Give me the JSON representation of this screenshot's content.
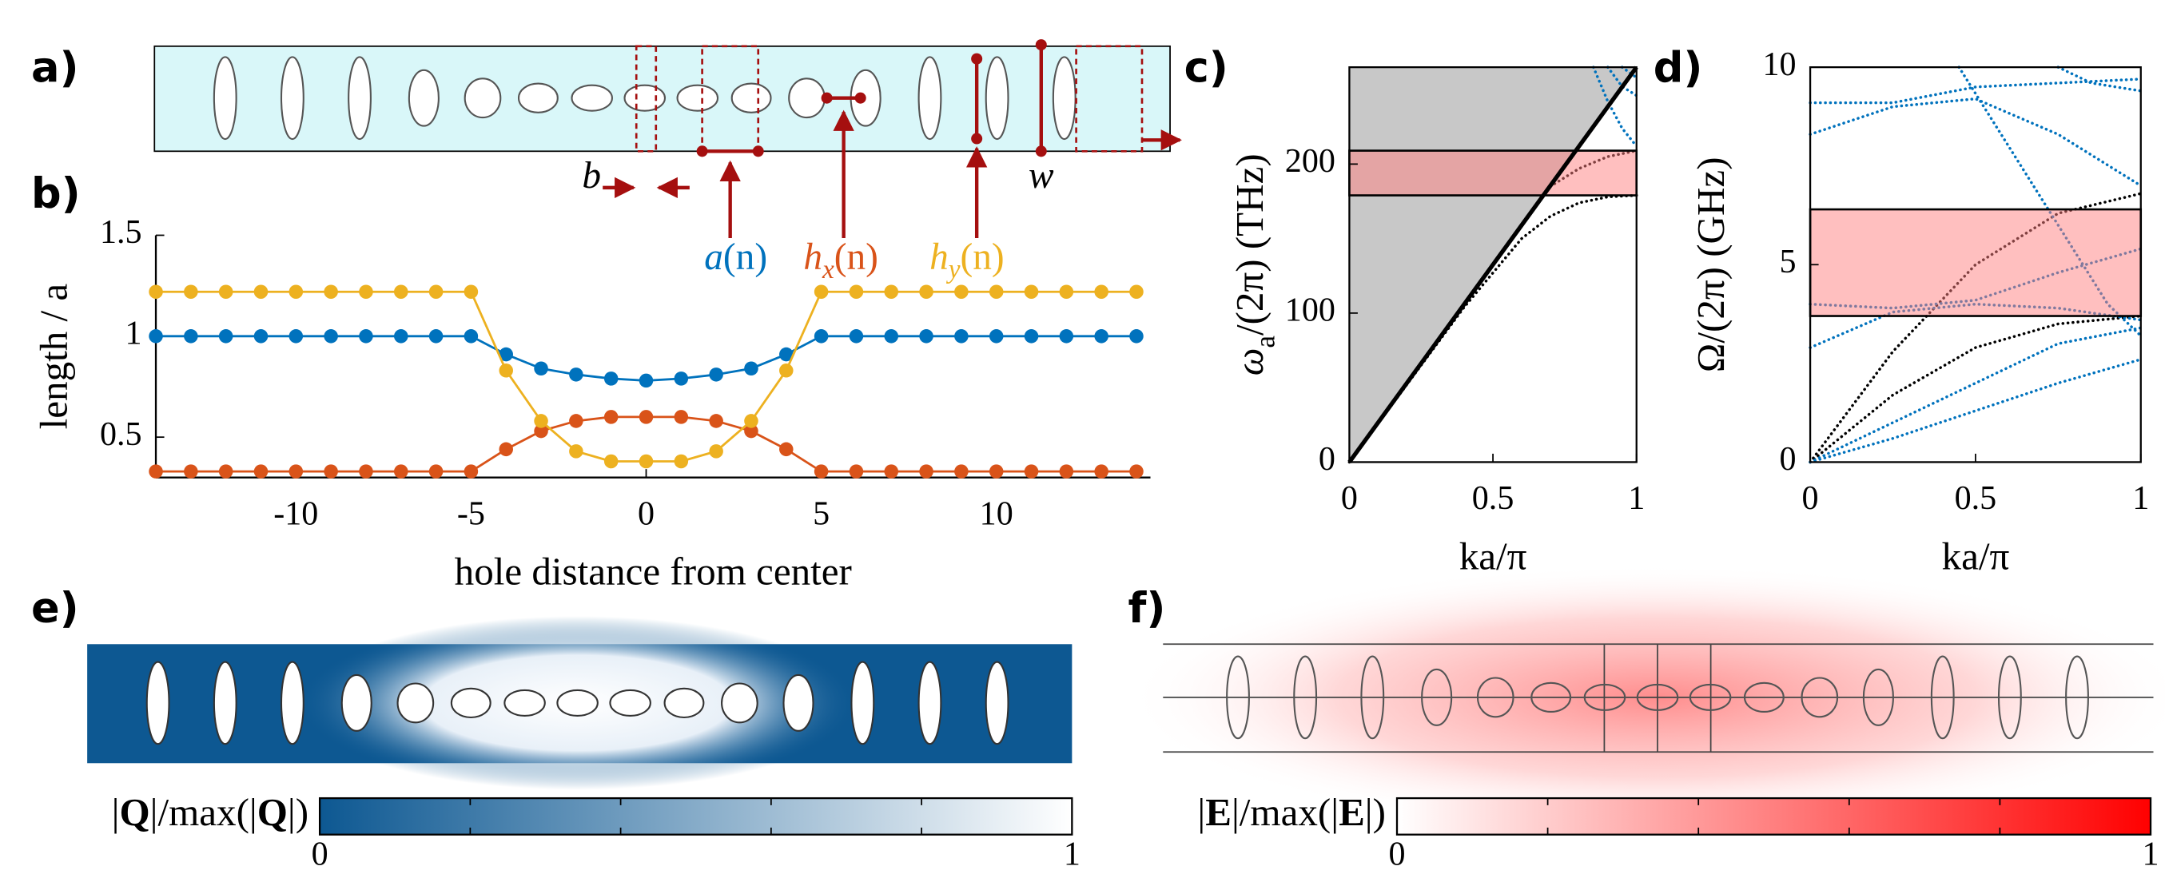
{
  "schematic": {
    "panel": "a)",
    "gap_label": "b",
    "width_label": "w"
  },
  "chart_data": [
    {
      "type": "line",
      "panel": "b)",
      "xlabel": "hole distance from center",
      "ylabel": "length / a",
      "x": [
        -14,
        -13,
        -12,
        -11,
        -10,
        -9,
        -8,
        -7,
        -6,
        -5,
        -4,
        -3,
        -2,
        -1,
        0,
        1,
        2,
        3,
        4,
        5,
        6,
        7,
        8,
        9,
        10,
        11,
        12,
        13,
        14
      ],
      "xlim": [
        -14,
        14.4
      ],
      "ylim": [
        0.3,
        1.5
      ],
      "xticks": [
        -10,
        -5,
        0,
        5,
        10
      ],
      "yticks": [
        0.5,
        1,
        1.5
      ],
      "series": [
        {
          "name": "a",
          "name_arg": "(n)",
          "color": "#0072BD",
          "values": [
            1,
            1,
            1,
            1,
            1,
            1,
            1,
            1,
            1,
            1,
            0.91,
            0.84,
            0.81,
            0.79,
            0.78,
            0.79,
            0.81,
            0.84,
            0.91,
            1,
            1,
            1,
            1,
            1,
            1,
            1,
            1,
            1,
            1
          ]
        },
        {
          "name": "h",
          "name_sub": "x",
          "name_arg": "(n)",
          "color": "#D95319",
          "values": [
            0.33,
            0.33,
            0.33,
            0.33,
            0.33,
            0.33,
            0.33,
            0.33,
            0.33,
            0.33,
            0.44,
            0.53,
            0.58,
            0.6,
            0.6,
            0.6,
            0.58,
            0.53,
            0.44,
            0.33,
            0.33,
            0.33,
            0.33,
            0.33,
            0.33,
            0.33,
            0.33,
            0.33,
            0.33
          ]
        },
        {
          "name": "h",
          "name_sub": "y",
          "name_arg": "(n)",
          "color": "#EDB120",
          "values": [
            1.22,
            1.22,
            1.22,
            1.22,
            1.22,
            1.22,
            1.22,
            1.22,
            1.22,
            1.22,
            0.83,
            0.58,
            0.43,
            0.38,
            0.38,
            0.38,
            0.43,
            0.58,
            0.83,
            1.22,
            1.22,
            1.22,
            1.22,
            1.22,
            1.22,
            1.22,
            1.22,
            1.22,
            1.22
          ]
        }
      ]
    },
    {
      "type": "band",
      "panel": "c)",
      "xlabel": "ka/π",
      "ylabel": "ω",
      "ylabel_sub": "a",
      "ylabel_rest": "/(2π) (THz)",
      "xlim": [
        0,
        1
      ],
      "ylim": [
        0,
        265
      ],
      "xticks": [
        0,
        0.5,
        1
      ],
      "yticks": [
        0,
        100,
        200
      ],
      "light_line": {
        "x": [
          0,
          1
        ],
        "values": [
          0,
          265
        ]
      },
      "cone_color": "#c8c8c8",
      "gap": [
        179,
        209
      ],
      "gap_color": "#ff8080",
      "series": [
        {
          "color": "#000000",
          "x": [
            0,
            0.2,
            0.4,
            0.6,
            0.7,
            0.8,
            0.9,
            1
          ],
          "values": [
            0,
            52,
            104,
            150,
            165,
            174,
            178,
            179
          ]
        },
        {
          "color": "#000000",
          "x": [
            0.7,
            0.8,
            0.9,
            1
          ],
          "values": [
            185,
            197,
            205,
            209
          ]
        },
        {
          "color": "#0072BD",
          "x": [
            0.85,
            0.9,
            0.95,
            1
          ],
          "values": [
            265,
            242,
            224,
            212
          ]
        },
        {
          "color": "#0072BD",
          "x": [
            0.9,
            0.95,
            1
          ],
          "values": [
            265,
            252,
            246
          ]
        },
        {
          "color": "#0072BD",
          "x": [
            0.95,
            1
          ],
          "values": [
            265,
            258
          ]
        }
      ]
    },
    {
      "type": "band",
      "panel": "d)",
      "xlabel": "ka/π",
      "ylabel": "Ω/(2π) (GHz)",
      "xlim": [
        0,
        1
      ],
      "ylim": [
        0,
        10
      ],
      "xticks": [
        0,
        0.5,
        1
      ],
      "yticks": [
        0,
        5,
        10
      ],
      "gap": [
        3.7,
        6.4
      ],
      "gap_color": "#ff8080",
      "series": [
        {
          "color": "#000000",
          "x": [
            0,
            0.25,
            0.5,
            0.75,
            1
          ],
          "values": [
            0,
            1.7,
            2.9,
            3.5,
            3.7
          ]
        },
        {
          "color": "#000000",
          "x": [
            0,
            0.25,
            0.5,
            0.75,
            1
          ],
          "values": [
            0,
            2.8,
            5,
            6.3,
            6.8
          ]
        },
        {
          "color": "#0072BD",
          "x": [
            0,
            0.25,
            0.5,
            0.75,
            1
          ],
          "values": [
            0,
            0.6,
            1.3,
            2,
            2.6
          ]
        },
        {
          "color": "#0072BD",
          "x": [
            0,
            0.25,
            0.5,
            0.75,
            1
          ],
          "values": [
            0,
            1,
            2,
            3,
            3.4
          ]
        },
        {
          "color": "#0072BD",
          "x": [
            0,
            0.25,
            0.5,
            0.75,
            1
          ],
          "values": [
            2.9,
            3.8,
            4,
            3.9,
            3.6
          ]
        },
        {
          "color": "#0072BD",
          "x": [
            0,
            0.25,
            0.5,
            0.75,
            1
          ],
          "values": [
            4,
            3.9,
            4.1,
            4.8,
            5.4
          ]
        },
        {
          "color": "#0072BD",
          "x": [
            0,
            0.25,
            0.5,
            0.75,
            1
          ],
          "values": [
            8.3,
            9,
            9.2,
            8.3,
            7
          ]
        },
        {
          "color": "#0072BD",
          "x": [
            0,
            0.25,
            0.5,
            0.75,
            1
          ],
          "values": [
            9.1,
            9.1,
            9.5,
            9.6,
            9.7
          ]
        },
        {
          "color": "#0072BD",
          "x": [
            0.45,
            0.6,
            0.75,
            0.9,
            1
          ],
          "values": [
            10,
            8,
            6,
            4,
            3.2
          ]
        },
        {
          "color": "#0072BD",
          "x": [
            0.75,
            0.85,
            1
          ],
          "values": [
            10,
            9.6,
            9.4
          ]
        }
      ]
    },
    {
      "type": "colorbar",
      "panel": "e)",
      "colors": [
        "#0d5892",
        "#ffffff"
      ],
      "lim": [
        0,
        1
      ],
      "ticks": [
        0,
        1
      ],
      "minor_ticks": [
        0.2,
        0.4,
        0.6,
        0.8
      ],
      "label": [
        {
          "text": "|"
        },
        {
          "text": "Q",
          "bold": true
        },
        {
          "text": "|/max(|"
        },
        {
          "text": "Q",
          "bold": true
        },
        {
          "text": "|)"
        }
      ]
    },
    {
      "type": "colorbar",
      "panel": "f)",
      "colors": [
        "#ffffff",
        "#ff0000"
      ],
      "lim": [
        0,
        1
      ],
      "ticks": [
        0,
        1
      ],
      "minor_ticks": [
        0.2,
        0.4,
        0.6,
        0.8
      ],
      "label": [
        {
          "text": "|"
        },
        {
          "text": "E",
          "bold": true
        },
        {
          "text": "|/max(|"
        },
        {
          "text": "E",
          "bold": true
        },
        {
          "text": "|)"
        }
      ]
    }
  ]
}
